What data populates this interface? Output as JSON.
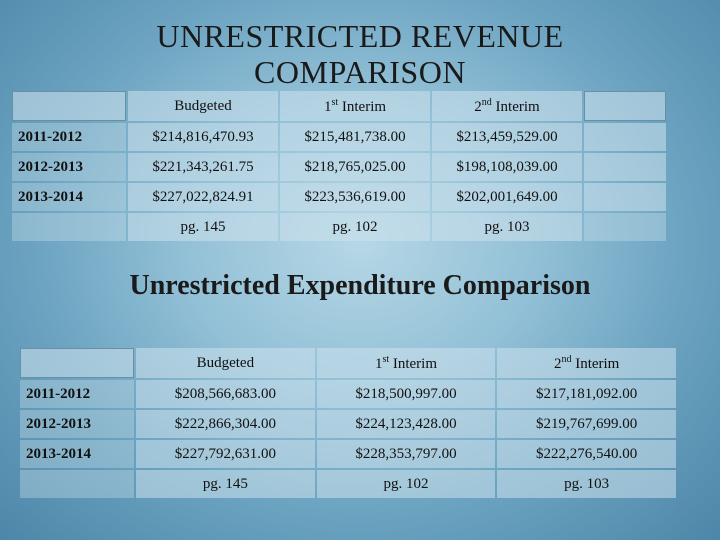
{
  "slide": {
    "title_revenue": "UNRESTRICTED REVENUE COMPARISON",
    "title_expenditure": "Unrestricted Expenditure Comparison"
  },
  "revenue_table": {
    "headers": [
      "Budgeted",
      "1",
      "st",
      " Interim",
      "2",
      "nd",
      " Interim"
    ],
    "col_budgeted": "Budgeted",
    "col_first_num": "1",
    "col_first_sup": "st",
    "col_first_rest": " Interim",
    "col_second_num": "2",
    "col_second_sup": "nd",
    "col_second_rest": " Interim",
    "rows": [
      {
        "year": "2011-2012",
        "budgeted": "$214,816,470.93",
        "first": "$215,481,738.00",
        "second": "$213,459,529.00"
      },
      {
        "year": "2012-2013",
        "budgeted": "$221,343,261.75",
        "first": "$218,765,025.00",
        "second": "$198,108,039.00"
      },
      {
        "year": "2013-2014",
        "budgeted": "$227,022,824.91",
        "first": "$223,536,619.00",
        "second": "$202,001,649.00"
      }
    ],
    "pages": {
      "budgeted": "pg. 145",
      "first": "pg. 102",
      "second": "pg. 103"
    }
  },
  "expenditure_table": {
    "col_budgeted": "Budgeted",
    "col_first_num": "1",
    "col_first_sup": "st",
    "col_first_rest": " Interim",
    "col_second_num": "2",
    "col_second_sup": "nd",
    "col_second_rest": " Interim",
    "rows": [
      {
        "year": "2011-2012",
        "budgeted": "$208,566,683.00",
        "first": "$218,500,997.00",
        "second": "$217,181,092.00"
      },
      {
        "year": "2012-2013",
        "budgeted": "$222,866,304.00",
        "first": "$224,123,428.00",
        "second": "$219,767,699.00"
      },
      {
        "year": "2013-2014",
        "budgeted": "$227,792,631.00",
        "first": "$228,353,797.00",
        "second": "$222,276,540.00"
      }
    ],
    "pages": {
      "budgeted": "pg. 145",
      "first": "pg. 102",
      "second": "pg. 103"
    }
  }
}
